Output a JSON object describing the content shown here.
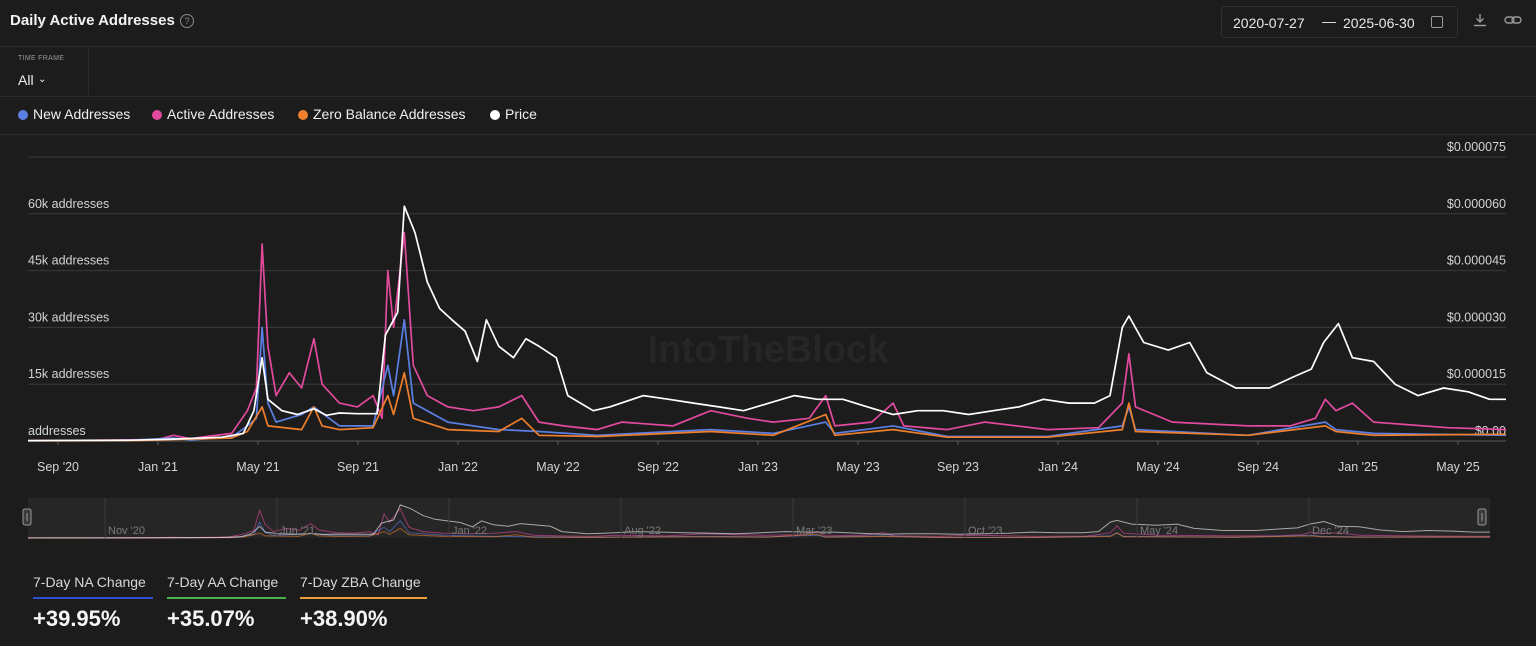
{
  "header": {
    "title": "Daily Active Addresses",
    "help_icon": "help-circle-icon"
  },
  "date_range": {
    "start": "2020-07-27",
    "separator": "—",
    "end": "2025-06-30",
    "calendar_icon": "calendar-icon"
  },
  "actions": {
    "download_icon": "download-icon",
    "link_icon": "link-icon"
  },
  "timeframe": {
    "label": "TIME FRAME",
    "value": "All",
    "chevron_icon": "chevron-down-icon"
  },
  "legend": [
    {
      "label": "New Addresses",
      "color": "#5b7fe3"
    },
    {
      "label": "Active Addresses",
      "color": "#e24a9e"
    },
    {
      "label": "Zero Balance Addresses",
      "color": "#ee7f2d"
    },
    {
      "label": "Price",
      "color": "#ffffff"
    }
  ],
  "watermark": "IntoTheBlock",
  "chart_data": {
    "type": "line",
    "title": "Daily Active Addresses",
    "x_range": [
      "2020-07-27",
      "2025-06-30"
    ],
    "x_ticks": [
      "Sep '20",
      "Jan '21",
      "May '21",
      "Sep '21",
      "Jan '22",
      "May '22",
      "Sep '22",
      "Jan '23",
      "May '23",
      "Sep '23",
      "Jan '24",
      "May '24",
      "Sep '24",
      "Jan '25",
      "May '25"
    ],
    "y_left": {
      "ticks": [
        "addresses",
        "15k addresses",
        "30k addresses",
        "45k addresses",
        "60k addresses"
      ],
      "range": [
        0,
        75000
      ]
    },
    "y_right": {
      "ticks": [
        "$0.00",
        "$0.000015",
        "$0.000030",
        "$0.000045",
        "$0.000060",
        "$0.000075"
      ],
      "range": [
        0,
        7.5e-05
      ]
    },
    "grid": true,
    "series": [
      {
        "name": "Active Addresses",
        "color": "#e24a9e",
        "axis": "left",
        "points": [
          [
            "2020-07-27",
            100
          ],
          [
            "2020-10-01",
            150
          ],
          [
            "2020-12-01",
            300
          ],
          [
            "2021-01-01",
            400
          ],
          [
            "2021-01-20",
            1500
          ],
          [
            "2021-02-10",
            600
          ],
          [
            "2021-03-01",
            1200
          ],
          [
            "2021-04-01",
            2000
          ],
          [
            "2021-04-20",
            8000
          ],
          [
            "2021-05-01",
            14000
          ],
          [
            "2021-05-08",
            52000
          ],
          [
            "2021-05-15",
            25000
          ],
          [
            "2021-05-25",
            12000
          ],
          [
            "2021-06-10",
            18000
          ],
          [
            "2021-06-25",
            14000
          ],
          [
            "2021-07-10",
            27000
          ],
          [
            "2021-07-20",
            15000
          ],
          [
            "2021-08-10",
            10000
          ],
          [
            "2021-09-01",
            9000
          ],
          [
            "2021-09-20",
            12000
          ],
          [
            "2021-10-01",
            6000
          ],
          [
            "2021-10-08",
            45000
          ],
          [
            "2021-10-15",
            30000
          ],
          [
            "2021-10-28",
            55000
          ],
          [
            "2021-11-08",
            20000
          ],
          [
            "2021-11-25",
            12000
          ],
          [
            "2021-12-20",
            9000
          ],
          [
            "2022-01-20",
            8000
          ],
          [
            "2022-02-20",
            9000
          ],
          [
            "2022-03-20",
            12000
          ],
          [
            "2022-04-10",
            5000
          ],
          [
            "2022-05-10",
            4000
          ],
          [
            "2022-06-20",
            3000
          ],
          [
            "2022-07-20",
            5000
          ],
          [
            "2022-09-20",
            4000
          ],
          [
            "2022-11-05",
            8000
          ],
          [
            "2022-12-20",
            6000
          ],
          [
            "2023-01-20",
            5000
          ],
          [
            "2023-03-05",
            6000
          ],
          [
            "2023-03-25",
            12000
          ],
          [
            "2023-04-05",
            4000
          ],
          [
            "2023-05-20",
            5000
          ],
          [
            "2023-06-15",
            10000
          ],
          [
            "2023-06-28",
            4000
          ],
          [
            "2023-08-20",
            3000
          ],
          [
            "2023-10-05",
            5000
          ],
          [
            "2023-12-20",
            3000
          ],
          [
            "2024-02-20",
            3500
          ],
          [
            "2024-03-20",
            10000
          ],
          [
            "2024-03-28",
            23000
          ],
          [
            "2024-04-05",
            9000
          ],
          [
            "2024-05-20",
            5000
          ],
          [
            "2024-08-20",
            4000
          ],
          [
            "2024-10-10",
            4000
          ],
          [
            "2024-11-10",
            6000
          ],
          [
            "2024-11-22",
            11000
          ],
          [
            "2024-12-05",
            8000
          ],
          [
            "2024-12-25",
            10000
          ],
          [
            "2025-01-20",
            5000
          ],
          [
            "2025-04-20",
            3500
          ],
          [
            "2025-06-30",
            3000
          ]
        ]
      },
      {
        "name": "New Addresses",
        "color": "#5b7fe3",
        "axis": "left",
        "points": [
          [
            "2020-07-27",
            50
          ],
          [
            "2020-12-01",
            200
          ],
          [
            "2021-01-20",
            800
          ],
          [
            "2021-02-10",
            300
          ],
          [
            "2021-04-01",
            1000
          ],
          [
            "2021-04-20",
            4000
          ],
          [
            "2021-05-01",
            6000
          ],
          [
            "2021-05-08",
            30000
          ],
          [
            "2021-05-15",
            10000
          ],
          [
            "2021-05-25",
            5000
          ],
          [
            "2021-06-25",
            7000
          ],
          [
            "2021-07-10",
            9000
          ],
          [
            "2021-08-10",
            4000
          ],
          [
            "2021-09-20",
            4000
          ],
          [
            "2021-10-08",
            20000
          ],
          [
            "2021-10-15",
            12000
          ],
          [
            "2021-10-28",
            32000
          ],
          [
            "2021-11-08",
            10000
          ],
          [
            "2021-12-20",
            5000
          ],
          [
            "2022-02-20",
            3000
          ],
          [
            "2022-04-10",
            2500
          ],
          [
            "2022-06-20",
            1500
          ],
          [
            "2022-11-05",
            3000
          ],
          [
            "2023-01-20",
            2000
          ],
          [
            "2023-03-25",
            5000
          ],
          [
            "2023-04-05",
            2000
          ],
          [
            "2023-06-15",
            4000
          ],
          [
            "2023-08-20",
            1200
          ],
          [
            "2023-12-20",
            1200
          ],
          [
            "2024-03-20",
            4000
          ],
          [
            "2024-03-28",
            9000
          ],
          [
            "2024-04-05",
            3000
          ],
          [
            "2024-08-20",
            1500
          ],
          [
            "2024-11-22",
            5000
          ],
          [
            "2024-12-05",
            3000
          ],
          [
            "2025-01-20",
            2000
          ],
          [
            "2025-06-30",
            1500
          ]
        ]
      },
      {
        "name": "Zero Balance Addresses",
        "color": "#ee7f2d",
        "axis": "left",
        "points": [
          [
            "2020-07-27",
            50
          ],
          [
            "2020-12-01",
            100
          ],
          [
            "2021-01-20",
            400
          ],
          [
            "2021-04-01",
            800
          ],
          [
            "2021-04-20",
            2500
          ],
          [
            "2021-05-08",
            9000
          ],
          [
            "2021-05-15",
            4000
          ],
          [
            "2021-06-25",
            3000
          ],
          [
            "2021-07-10",
            9000
          ],
          [
            "2021-07-20",
            4000
          ],
          [
            "2021-08-10",
            3000
          ],
          [
            "2021-09-20",
            3500
          ],
          [
            "2021-10-08",
            12000
          ],
          [
            "2021-10-15",
            7000
          ],
          [
            "2021-10-28",
            18000
          ],
          [
            "2021-11-08",
            6000
          ],
          [
            "2021-12-20",
            3000
          ],
          [
            "2022-02-20",
            2500
          ],
          [
            "2022-03-20",
            6000
          ],
          [
            "2022-04-10",
            1500
          ],
          [
            "2022-06-20",
            1200
          ],
          [
            "2022-11-05",
            2500
          ],
          [
            "2023-01-20",
            1500
          ],
          [
            "2023-03-25",
            7000
          ],
          [
            "2023-04-05",
            1500
          ],
          [
            "2023-06-15",
            3000
          ],
          [
            "2023-08-20",
            1000
          ],
          [
            "2023-12-20",
            1000
          ],
          [
            "2024-03-20",
            3000
          ],
          [
            "2024-03-28",
            10000
          ],
          [
            "2024-04-05",
            2500
          ],
          [
            "2024-08-20",
            1500
          ],
          [
            "2024-11-22",
            4000
          ],
          [
            "2024-12-05",
            2500
          ],
          [
            "2025-01-20",
            1500
          ],
          [
            "2025-06-30",
            1800
          ]
        ]
      },
      {
        "name": "Price",
        "color": "#ffffff",
        "axis": "right",
        "points": [
          [
            "2020-07-27",
            1e-07
          ],
          [
            "2020-12-01",
            2e-07
          ],
          [
            "2021-01-20",
            5e-07
          ],
          [
            "2021-03-20",
            1e-06
          ],
          [
            "2021-04-15",
            2e-06
          ],
          [
            "2021-04-28",
            8e-06
          ],
          [
            "2021-05-08",
            2.2e-05
          ],
          [
            "2021-05-15",
            1.1e-05
          ],
          [
            "2021-06-01",
            8e-06
          ],
          [
            "2021-06-20",
            7e-06
          ],
          [
            "2021-07-10",
            8.5e-06
          ],
          [
            "2021-07-25",
            6.8e-06
          ],
          [
            "2021-08-10",
            7.4e-06
          ],
          [
            "2021-09-01",
            7.2e-06
          ],
          [
            "2021-09-25",
            7.2e-06
          ],
          [
            "2021-10-05",
            2.8e-05
          ],
          [
            "2021-10-20",
            3.4e-05
          ],
          [
            "2021-10-28",
            6.2e-05
          ],
          [
            "2021-11-10",
            5.5e-05
          ],
          [
            "2021-11-25",
            4.2e-05
          ],
          [
            "2021-12-10",
            3.5e-05
          ],
          [
            "2021-12-25",
            3.2e-05
          ],
          [
            "2022-01-10",
            2.9e-05
          ],
          [
            "2022-01-25",
            2.1e-05
          ],
          [
            "2022-02-05",
            3.2e-05
          ],
          [
            "2022-02-20",
            2.5e-05
          ],
          [
            "2022-03-10",
            2.2e-05
          ],
          [
            "2022-03-25",
            2.7e-05
          ],
          [
            "2022-04-10",
            2.5e-05
          ],
          [
            "2022-05-01",
            2.2e-05
          ],
          [
            "2022-05-15",
            1.2e-05
          ],
          [
            "2022-06-15",
            8e-06
          ],
          [
            "2022-07-05",
            9e-06
          ],
          [
            "2022-08-15",
            1.2e-05
          ],
          [
            "2022-09-15",
            1.1e-05
          ],
          [
            "2022-10-15",
            1e-05
          ],
          [
            "2022-11-15",
            9e-06
          ],
          [
            "2022-12-15",
            8e-06
          ],
          [
            "2023-01-15",
            1e-05
          ],
          [
            "2023-02-15",
            1.2e-05
          ],
          [
            "2023-03-15",
            1.1e-05
          ],
          [
            "2023-04-15",
            1.1e-05
          ],
          [
            "2023-05-15",
            9e-06
          ],
          [
            "2023-06-15",
            7e-06
          ],
          [
            "2023-07-15",
            8e-06
          ],
          [
            "2023-08-15",
            8e-06
          ],
          [
            "2023-09-15",
            7e-06
          ],
          [
            "2023-10-15",
            8e-06
          ],
          [
            "2023-11-15",
            9e-06
          ],
          [
            "2023-12-15",
            1.1e-05
          ],
          [
            "2024-01-15",
            1e-05
          ],
          [
            "2024-02-15",
            1e-05
          ],
          [
            "2024-03-05",
            1.2e-05
          ],
          [
            "2024-03-20",
            3e-05
          ],
          [
            "2024-03-28",
            3.3e-05
          ],
          [
            "2024-04-15",
            2.6e-05
          ],
          [
            "2024-05-15",
            2.4e-05
          ],
          [
            "2024-06-10",
            2.6e-05
          ],
          [
            "2024-07-01",
            1.8e-05
          ],
          [
            "2024-08-05",
            1.4e-05
          ],
          [
            "2024-09-15",
            1.4e-05
          ],
          [
            "2024-10-15",
            1.7e-05
          ],
          [
            "2024-11-05",
            1.9e-05
          ],
          [
            "2024-11-20",
            2.6e-05
          ],
          [
            "2024-12-08",
            3.1e-05
          ],
          [
            "2024-12-25",
            2.2e-05
          ],
          [
            "2025-01-20",
            2.1e-05
          ],
          [
            "2025-02-15",
            1.5e-05
          ],
          [
            "2025-03-15",
            1.2e-05
          ],
          [
            "2025-04-15",
            1.4e-05
          ],
          [
            "2025-05-15",
            1.3e-05
          ],
          [
            "2025-06-10",
            1.1e-05
          ],
          [
            "2025-06-30",
            1.1e-05
          ]
        ]
      }
    ]
  },
  "navigator": {
    "labels": [
      "Nov '20",
      "Jun '21",
      "Jan '22",
      "Aug '22",
      "Mar '23",
      "Oct '23",
      "May '24",
      "Dec '24"
    ],
    "handle_icon": "drag-handle-icon"
  },
  "stats": [
    {
      "label": "7-Day NA Change",
      "value": "+39.95%",
      "color": "#2f4fd6"
    },
    {
      "label": "7-Day AA Change",
      "value": "+35.07%",
      "color": "#4db04d"
    },
    {
      "label": "7-Day ZBA Change",
      "value": "+38.90%",
      "color": "#e8a13a"
    }
  ]
}
